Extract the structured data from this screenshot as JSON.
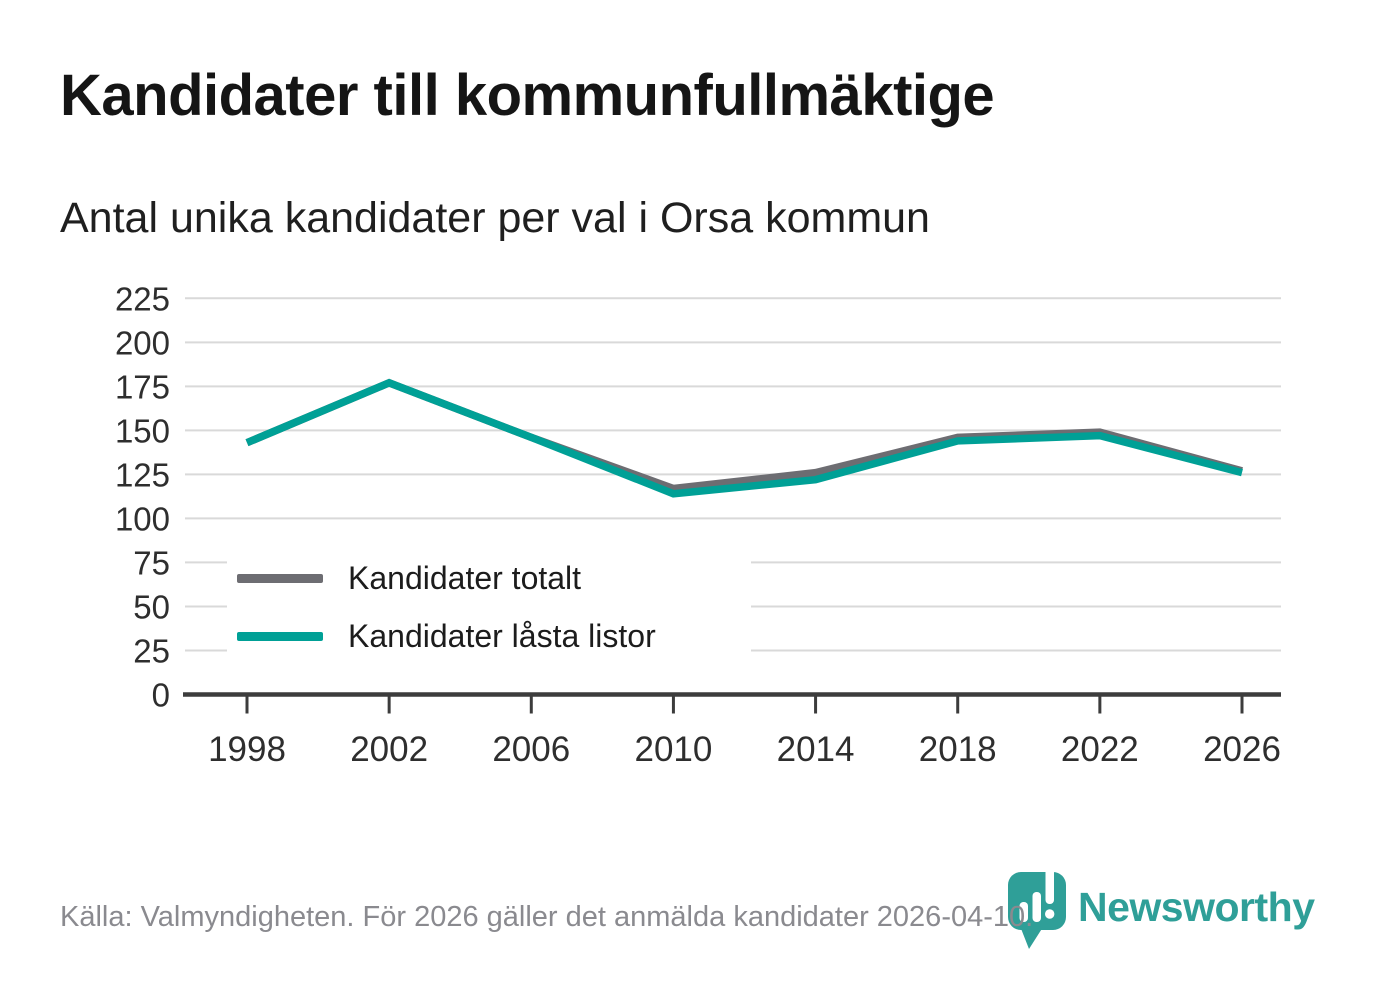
{
  "header": {
    "title": "Kandidater till kommunfullmäktige",
    "subtitle": "Antal unika kandidater per val i Orsa kommun"
  },
  "chart_data": {
    "type": "line",
    "title": "Kandidater till kommunfullmäktige",
    "subtitle": "Antal unika kandidater per val i Orsa kommun",
    "x": [
      1998,
      2002,
      2006,
      2010,
      2014,
      2018,
      2022,
      2026
    ],
    "series": [
      {
        "name": "Kandidater totalt",
        "color": "#6d6d72",
        "values": [
          143,
          177,
          146,
          117,
          126,
          146,
          149,
          127
        ]
      },
      {
        "name": "Kandidater låsta listor",
        "color": "#00a096",
        "values": [
          143,
          177,
          146,
          114,
          122,
          144,
          147,
          126
        ]
      }
    ],
    "xlabel": "",
    "ylabel": "",
    "ylim": [
      0,
      225
    ],
    "ytick_step": 25,
    "grid": "horizontal",
    "legend_position": "inside-bottom-left"
  },
  "footer": {
    "source": "Källa: Valmyndigheten. För 2026 gäller det anmälda kandidater 2026-04-10.",
    "brand": "Newsworthy"
  },
  "colors": {
    "accent": "#00a096",
    "series_gray": "#6d6d72",
    "grid": "#d9d9d9",
    "axis": "#3c3c3c",
    "tick_text": "#2e2e2e",
    "muted_text": "#8a8a8f",
    "brand_teal": "#2f9f98"
  }
}
